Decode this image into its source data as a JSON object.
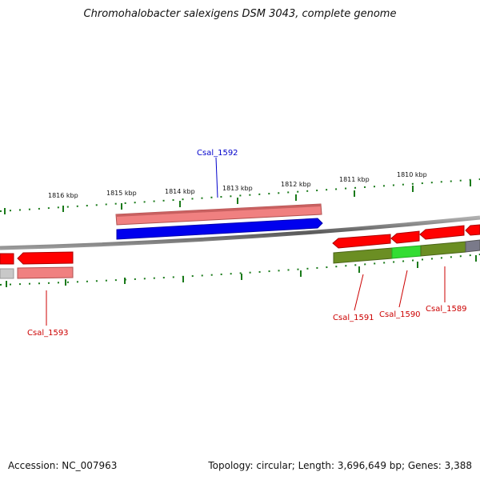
{
  "title": "Chromohalobacter salexigens DSM 3043, complete genome",
  "footer": {
    "accession": "Accession: NC_007963",
    "stats": "Topology: circular; Length: 3,696,649 bp; Genes: 3,388"
  },
  "scale": {
    "ticks": [
      {
        "label": "1816 kbp",
        "kbp": 1816
      },
      {
        "label": "1815 kbp",
        "kbp": 1815
      },
      {
        "label": "1814 kbp",
        "kbp": 1814
      },
      {
        "label": "1813 kbp",
        "kbp": 1813
      },
      {
        "label": "1812 kbp",
        "kbp": 1812
      },
      {
        "label": "1811 kbp",
        "kbp": 1811
      },
      {
        "label": "1810 kbp",
        "kbp": 1810
      }
    ]
  },
  "genes": [
    {
      "name": "Csal_1592",
      "color": "#0000cc"
    },
    {
      "name": "Csal_1593",
      "color": "#cc0000"
    },
    {
      "name": "Csal_1591",
      "color": "#cc0000"
    },
    {
      "name": "Csal_1590",
      "color": "#cc0000"
    },
    {
      "name": "Csal_1589",
      "color": "#cc0000"
    }
  ],
  "colors": {
    "backbone": "#808080",
    "forward_cds": "#ff0000",
    "forward_cds_light": "#f08080",
    "reverse_cds": "#0000ee",
    "tick": "#1a7a1a",
    "olive": "#6b8e23",
    "green": "#33dd33"
  }
}
